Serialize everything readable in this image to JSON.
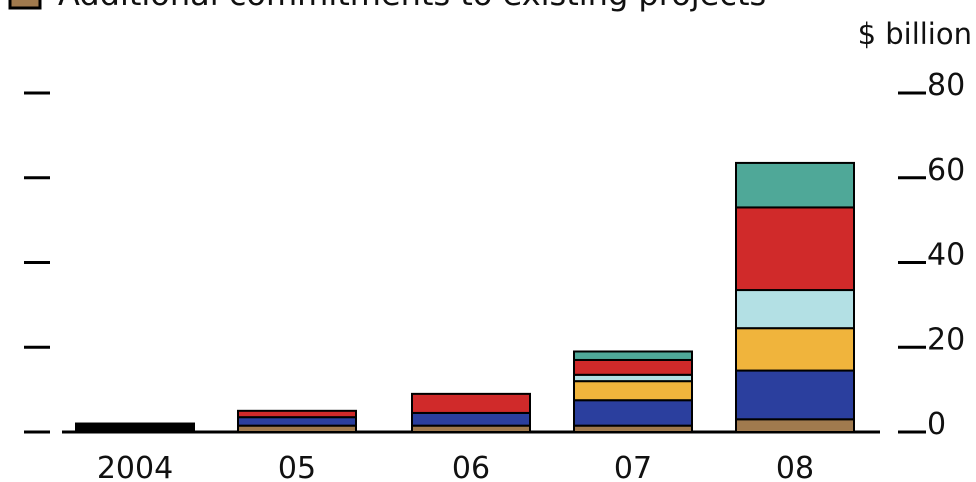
{
  "legend": {
    "label": "Additional commitments to existing projects",
    "color": "#a07a4e"
  },
  "chart_data": {
    "type": "bar",
    "stacked": true,
    "unit_label": "$ billion",
    "categories": [
      "2004",
      "05",
      "06",
      "07",
      "08"
    ],
    "ylim": [
      0,
      80
    ],
    "yticks": [
      0,
      20,
      40,
      60,
      80
    ],
    "grid": false,
    "series": [
      {
        "color": "#a07a4e",
        "values": [
          0,
          1.5,
          1.5,
          1.5,
          3.0
        ]
      },
      {
        "color": "#000000",
        "values": [
          2.0,
          0,
          0,
          0,
          0
        ]
      },
      {
        "color": "#2b3f9e",
        "values": [
          0,
          2.0,
          3.0,
          6.0,
          11.5
        ]
      },
      {
        "color": "#f0b43c",
        "values": [
          0,
          0,
          0,
          4.5,
          10.0
        ]
      },
      {
        "color": "#b3e0e4",
        "values": [
          0,
          0,
          0,
          1.5,
          9.0
        ]
      },
      {
        "color": "#d02a2a",
        "values": [
          0,
          1.5,
          4.5,
          3.5,
          19.5
        ]
      },
      {
        "color": "#4fa898",
        "values": [
          0,
          0,
          0,
          2.0,
          10.5
        ]
      }
    ]
  }
}
